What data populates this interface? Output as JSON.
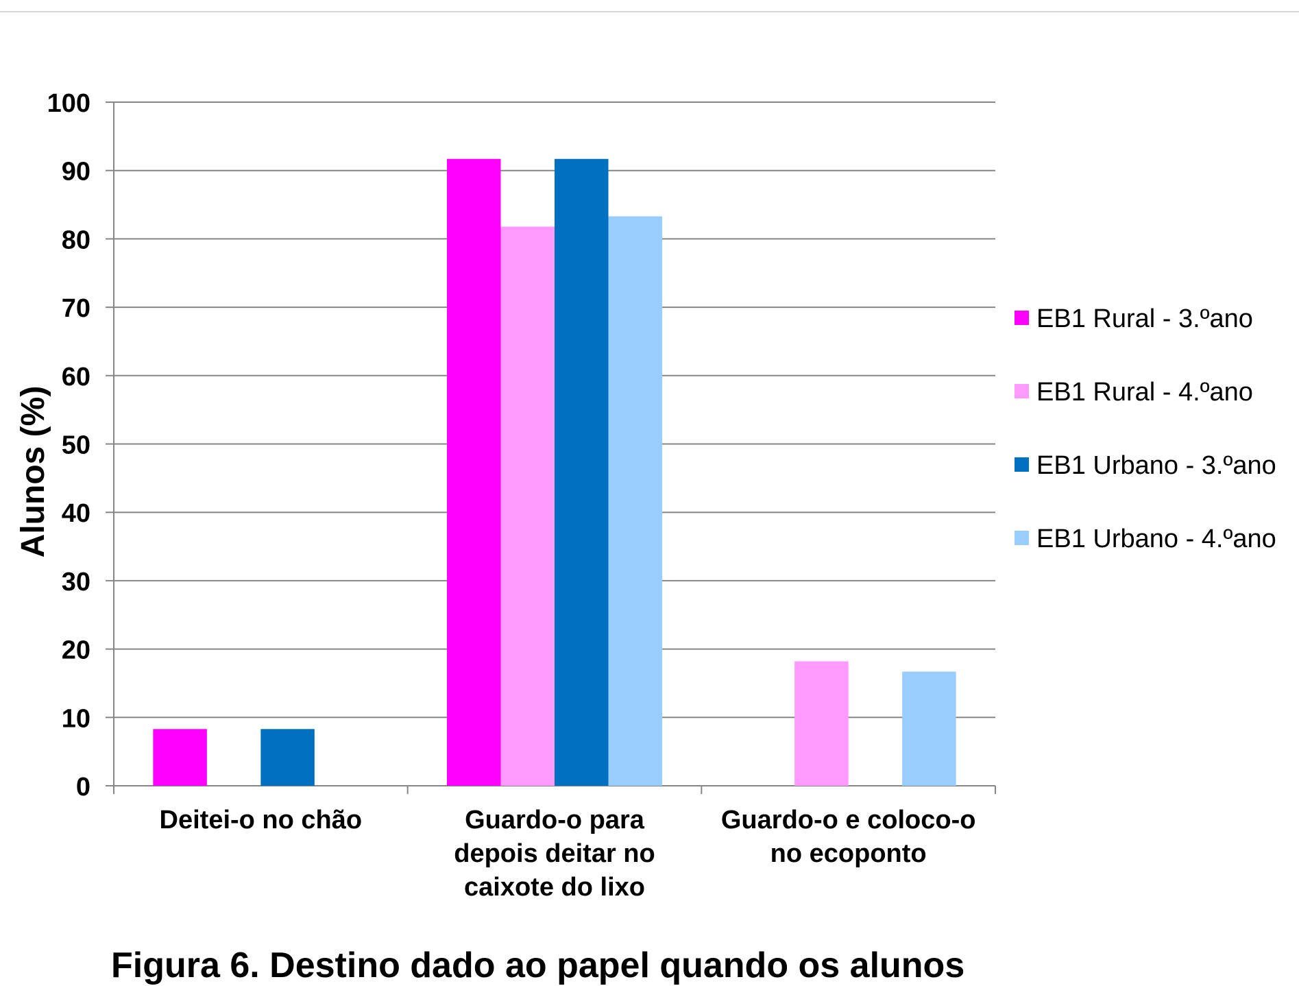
{
  "chart_data": {
    "type": "bar",
    "title": "",
    "xlabel": "",
    "ylabel": "Alunos (%)",
    "ylim": [
      0,
      100
    ],
    "yticks": [
      0,
      10,
      20,
      30,
      40,
      50,
      60,
      70,
      80,
      90,
      100
    ],
    "grid": true,
    "legend_position": "right",
    "categories": [
      [
        "Deitei-o no chão"
      ],
      [
        "Guardo-o para",
        "depois deitar no",
        "caixote do lixo"
      ],
      [
        "Guardo-o e coloco-o",
        "no ecoponto"
      ]
    ],
    "series": [
      {
        "name": "EB1 Rural - 3.ºano",
        "color": "#ff00ff",
        "values": [
          8.3,
          91.7,
          0
        ]
      },
      {
        "name": "EB1 Rural - 4.ºano",
        "color": "#ff99ff",
        "values": [
          0,
          81.8,
          18.2
        ]
      },
      {
        "name": "EB1 Urbano - 3.ºano",
        "color": "#0070c0",
        "values": [
          8.3,
          91.7,
          0
        ]
      },
      {
        "name": "EB1 Urbano - 4.ºano",
        "color": "#99ccff",
        "values": [
          0,
          83.3,
          16.7
        ]
      }
    ]
  },
  "caption": "Figura 6. Destino dado ao papel quando os alunos"
}
